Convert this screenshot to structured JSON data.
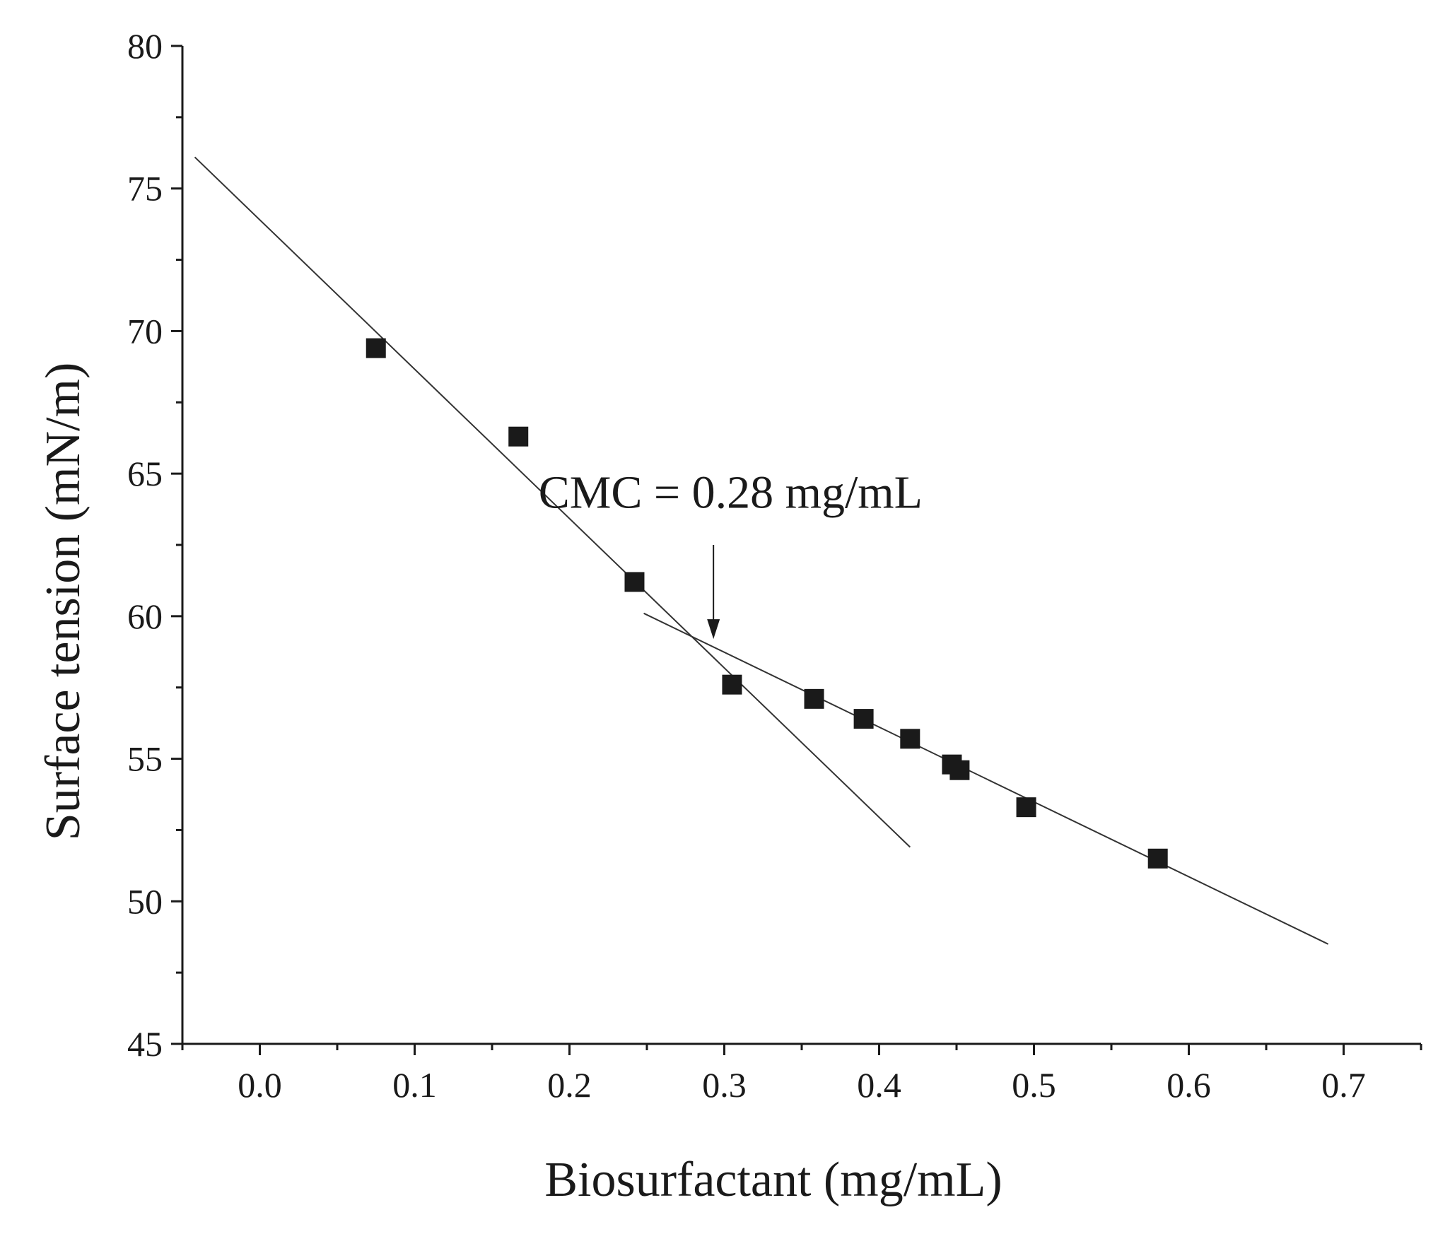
{
  "chart_data": {
    "type": "scatter",
    "title": "",
    "xlabel": "Biosurfactant (mg/mL)",
    "ylabel": "Surface tension (mN/m)",
    "xlim": [
      -0.05,
      0.75
    ],
    "ylim": [
      45,
      80
    ],
    "xticks": [
      0.0,
      0.1,
      0.2,
      0.3,
      0.4,
      0.5,
      0.6,
      0.7
    ],
    "xtick_labels": [
      "0.0",
      "0.1",
      "0.2",
      "0.3",
      "0.4",
      "0.5",
      "0.6",
      "0.7"
    ],
    "yticks": [
      45,
      50,
      55,
      60,
      65,
      70,
      75,
      80
    ],
    "ytick_labels": [
      "45",
      "50",
      "55",
      "60",
      "65",
      "70",
      "75",
      "80"
    ],
    "grid": false,
    "series": [
      {
        "name": "Surface tension",
        "marker": "square",
        "x": [
          0.075,
          0.167,
          0.242,
          0.305,
          0.358,
          0.39,
          0.42,
          0.447,
          0.452,
          0.495,
          0.58
        ],
        "y": [
          69.4,
          66.3,
          61.2,
          57.6,
          57.1,
          56.4,
          55.7,
          54.8,
          54.6,
          53.3,
          51.5
        ]
      }
    ],
    "fit_lines": [
      {
        "name": "pre-CMC fit",
        "x": [
          -0.042,
          0.42
        ],
        "y": [
          76.1,
          51.9
        ]
      },
      {
        "name": "post-CMC fit",
        "x": [
          0.248,
          0.69
        ],
        "y": [
          60.1,
          48.5
        ]
      }
    ],
    "annotations": [
      {
        "text": "CMC = 0.28 mg/mL",
        "arrow_x": 0.293,
        "arrow_from_y": 62.5,
        "arrow_to_y": 59.2
      }
    ]
  }
}
